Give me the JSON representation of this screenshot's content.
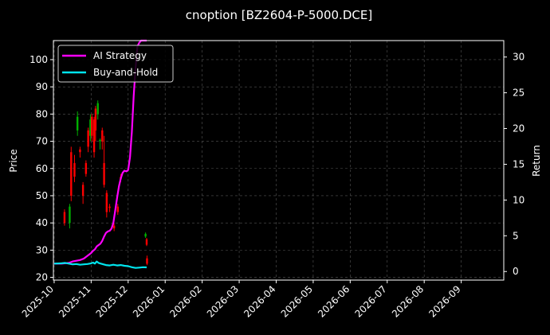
{
  "chart_data": {
    "type": "line",
    "title": "cnoption [BZ2604-P-5000.DCE]",
    "ylabel": "Price",
    "y2label": "Return",
    "ylim": [
      19,
      107
    ],
    "y2lim": [
      -1.2,
      32.3
    ],
    "yticks": [
      20,
      30,
      40,
      50,
      60,
      70,
      80,
      90,
      100
    ],
    "y2ticks": [
      0,
      5,
      10,
      15,
      20,
      25,
      30
    ],
    "xticks": [
      "2025-10",
      "2025-11",
      "2025-12",
      "2026-01",
      "2026-02",
      "2026-03",
      "2026-04",
      "2026-05",
      "2026-06",
      "2026-07",
      "2026-08",
      "2026-09"
    ],
    "xlim": [
      -0.02,
      12.15
    ],
    "grid": true,
    "legend": "top-left",
    "colors": {
      "up": "#00b000",
      "down": "#ff0000",
      "strategy": "#ff00ff",
      "hold": "#00e5ee",
      "grid": "#555555"
    },
    "series": [
      {
        "name": "AI Strategy",
        "axis": "right",
        "x": [
          0.0,
          0.2,
          0.4,
          0.5,
          0.6,
          0.7,
          0.8,
          0.85,
          0.9,
          0.95,
          1.0,
          1.05,
          1.1,
          1.15,
          1.2,
          1.25,
          1.3,
          1.35,
          1.4,
          1.45,
          1.5,
          1.55,
          1.6,
          1.65,
          1.7,
          1.75,
          1.8,
          1.85,
          1.9,
          1.95,
          2.0,
          2.05,
          2.1,
          2.15,
          2.2,
          2.25,
          2.3,
          2.35,
          2.4,
          2.45,
          2.5
        ],
        "y": [
          1.1,
          1.1,
          1.2,
          1.4,
          1.5,
          1.6,
          1.8,
          2.0,
          2.2,
          2.4,
          2.6,
          2.9,
          3.1,
          3.5,
          3.7,
          3.9,
          4.3,
          4.9,
          5.4,
          5.6,
          5.7,
          6.0,
          6.8,
          8.5,
          10.3,
          11.9,
          13.0,
          13.8,
          14.1,
          14.0,
          14.2,
          16.0,
          19.5,
          24.5,
          28.5,
          31.5,
          32.0,
          32.3,
          32.3,
          32.3,
          32.3
        ]
      },
      {
        "name": "Buy-and-Hold",
        "axis": "right",
        "x": [
          0.0,
          0.2,
          0.3,
          0.4,
          0.5,
          0.6,
          0.7,
          0.8,
          0.9,
          1.0,
          1.05,
          1.1,
          1.15,
          1.2,
          1.3,
          1.4,
          1.5,
          1.6,
          1.7,
          1.8,
          1.9,
          2.0,
          2.1,
          2.2,
          2.3,
          2.4,
          2.5
        ],
        "y": [
          1.1,
          1.15,
          1.2,
          1.1,
          1.0,
          1.05,
          0.95,
          1.0,
          1.05,
          1.15,
          1.25,
          1.1,
          1.4,
          1.2,
          1.05,
          0.9,
          0.85,
          0.95,
          0.85,
          0.9,
          0.8,
          0.75,
          0.6,
          0.5,
          0.55,
          0.6,
          0.58
        ]
      }
    ],
    "candles": [
      {
        "x": 0.28,
        "o": 44,
        "c": 40,
        "h": 45,
        "l": 39
      },
      {
        "x": 0.42,
        "o": 40,
        "c": 46,
        "h": 47,
        "l": 38
      },
      {
        "x": 0.46,
        "o": 66,
        "c": 50,
        "h": 68,
        "l": 48
      },
      {
        "x": 0.55,
        "o": 62,
        "c": 57,
        "h": 65,
        "l": 55
      },
      {
        "x": 0.63,
        "o": 74,
        "c": 79,
        "h": 81,
        "l": 72
      },
      {
        "x": 0.7,
        "o": 67,
        "c": 66,
        "h": 68,
        "l": 64
      },
      {
        "x": 0.78,
        "o": 54,
        "c": 50,
        "h": 55,
        "l": 47
      },
      {
        "x": 0.86,
        "o": 62,
        "c": 58,
        "h": 63,
        "l": 57
      },
      {
        "x": 0.92,
        "o": 74,
        "c": 68,
        "h": 75,
        "l": 66
      },
      {
        "x": 0.98,
        "o": 72,
        "c": 78,
        "h": 80,
        "l": 70
      },
      {
        "x": 1.02,
        "o": 79,
        "c": 72,
        "h": 80,
        "l": 70
      },
      {
        "x": 1.08,
        "o": 78,
        "c": 66,
        "h": 79,
        "l": 64
      },
      {
        "x": 1.12,
        "o": 82,
        "c": 74,
        "h": 83,
        "l": 70
      },
      {
        "x": 1.18,
        "o": 80,
        "c": 84,
        "h": 85,
        "l": 78
      },
      {
        "x": 1.24,
        "o": 70,
        "c": 70.5,
        "h": 71,
        "l": 67
      },
      {
        "x": 1.3,
        "o": 74,
        "c": 70,
        "h": 75,
        "l": 67
      },
      {
        "x": 1.35,
        "o": 62,
        "c": 54,
        "h": 72,
        "l": 53
      },
      {
        "x": 1.42,
        "o": 51,
        "c": 44,
        "h": 52,
        "l": 42
      },
      {
        "x": 1.5,
        "o": 46,
        "c": 45.5,
        "h": 47,
        "l": 44
      },
      {
        "x": 1.62,
        "o": 39,
        "c": 38,
        "h": 40,
        "l": 37
      },
      {
        "x": 1.72,
        "o": 46,
        "c": 44,
        "h": 47,
        "l": 43
      },
      {
        "x": 1.8,
        "o": 57,
        "c": 56,
        "h": 58,
        "l": 55
      },
      {
        "x": 2.47,
        "o": 35,
        "c": 36,
        "h": 36.5,
        "l": 34.5
      },
      {
        "x": 2.5,
        "o": 34,
        "c": 32,
        "h": 34.5,
        "l": 31.5
      },
      {
        "x": 2.51,
        "o": 27,
        "c": 25,
        "h": 28,
        "l": 24.5
      }
    ]
  }
}
